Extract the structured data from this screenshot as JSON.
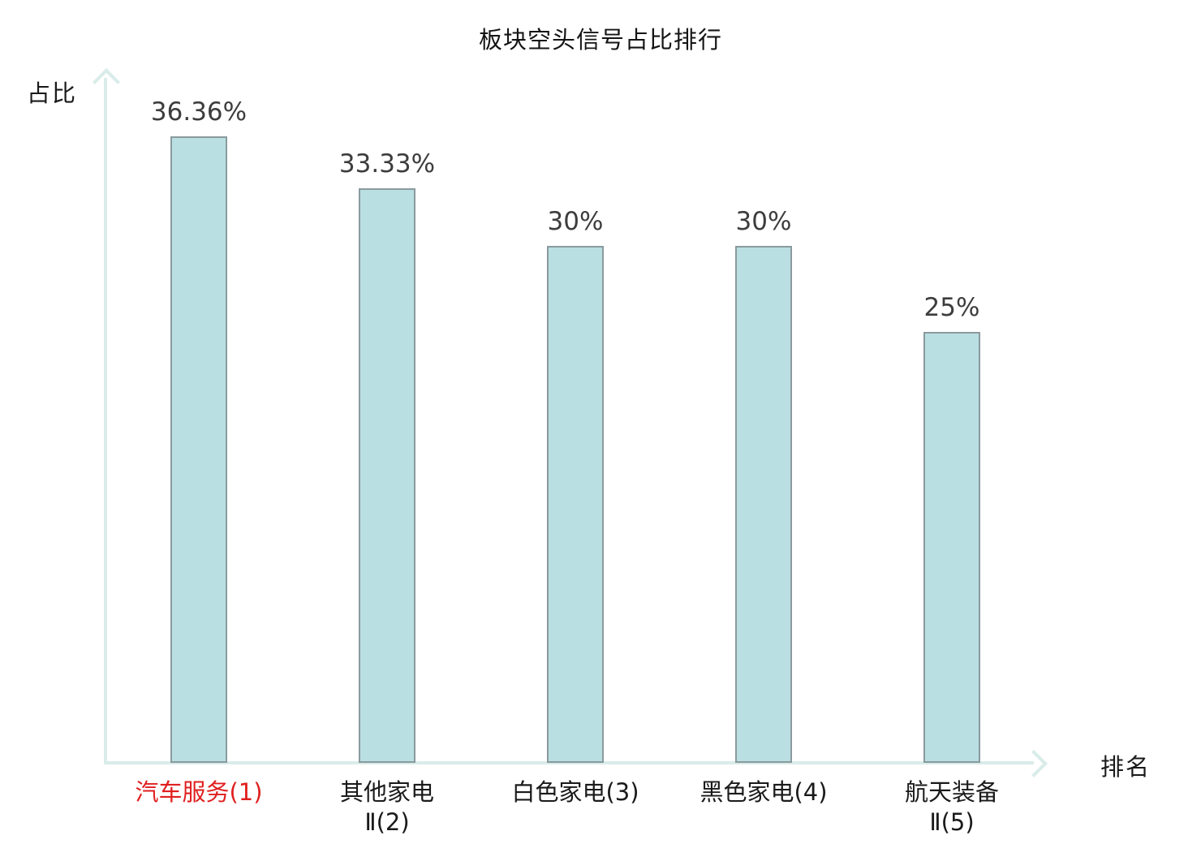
{
  "chart_data": {
    "type": "bar",
    "title": "板块空头信号占比排行",
    "ylabel": "占比",
    "xlabel": "排名",
    "categories": [
      "汽车服务(1)",
      "其他家电\nⅡ(2)",
      "白色家电(3)",
      "黑色家电(4)",
      "航天装备\nⅡ(5)"
    ],
    "values": [
      36.36,
      33.33,
      30,
      30,
      25
    ],
    "value_labels": [
      "36.36%",
      "33.33%",
      "30%",
      "30%",
      "25%"
    ],
    "highlight_index": 0,
    "ylim": [
      0,
      40
    ],
    "grid": false,
    "legend": null,
    "colors": {
      "bar_fill": "#badfe2",
      "bar_border": "#8a9a9e",
      "axis": "#d9ece9",
      "value_label": "#3d3d3d",
      "category_label": "#1a1a1a",
      "highlight_label": "#e01f1f",
      "title": "#141414"
    }
  }
}
